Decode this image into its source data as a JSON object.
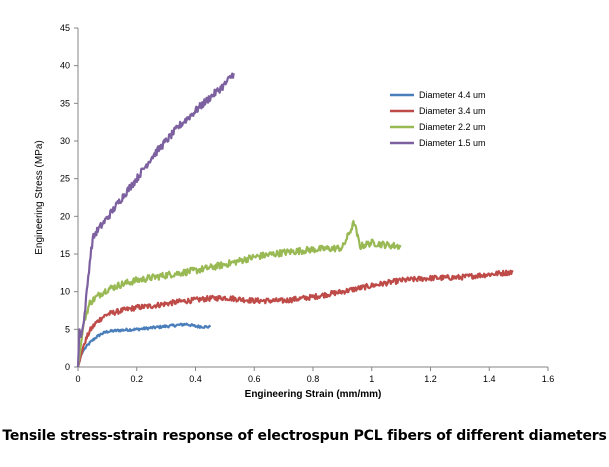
{
  "caption": "Tensile stress-strain response of electrospun PCL fibers of different diameters",
  "chart_data": {
    "type": "line",
    "title": "",
    "xlabel": "Engineering Strain (mm/mm)",
    "ylabel": "Engineering Stress (MPa)",
    "xlim": [
      0,
      1.6
    ],
    "ylim": [
      0,
      45
    ],
    "xticks": [
      0,
      0.2,
      0.4,
      0.6,
      0.8,
      1,
      1.2,
      1.4,
      1.6
    ],
    "xtick_labels": [
      "0",
      "0.2",
      "0.4",
      "0.6",
      "0.8",
      "1",
      "1.2",
      "1.4",
      "1.6"
    ],
    "yticks": [
      0,
      5,
      10,
      15,
      20,
      25,
      30,
      35,
      40,
      45
    ],
    "ytick_labels": [
      "0",
      "5",
      "10",
      "15",
      "20",
      "25",
      "30",
      "35",
      "40",
      "45"
    ],
    "grid": false,
    "legend_position": "top-right",
    "series": [
      {
        "name": "Diameter 4.4 um",
        "color": "#4a7ebb",
        "x": [
          0,
          0.01,
          0.02,
          0.04,
          0.06,
          0.08,
          0.1,
          0.15,
          0.2,
          0.25,
          0.3,
          0.35,
          0.37,
          0.4,
          0.45
        ],
        "y": [
          0,
          1.5,
          2.3,
          3.2,
          3.9,
          4.4,
          4.7,
          4.9,
          5.0,
          5.2,
          5.4,
          5.6,
          5.7,
          5.4,
          5.3
        ]
      },
      {
        "name": "Diameter 3.4 um",
        "color": "#be4b48",
        "x": [
          0,
          0.01,
          0.02,
          0.04,
          0.06,
          0.08,
          0.1,
          0.15,
          0.2,
          0.25,
          0.3,
          0.35,
          0.4,
          0.45,
          0.5,
          0.55,
          0.6,
          0.7,
          0.8,
          0.9,
          1.0,
          1.1,
          1.2,
          1.3,
          1.4,
          1.48
        ],
        "y": [
          0,
          1.5,
          3.0,
          4.8,
          5.8,
          6.5,
          7.0,
          7.5,
          7.9,
          8.1,
          8.4,
          8.7,
          8.9,
          9.1,
          9.2,
          9.0,
          8.8,
          8.8,
          9.3,
          10.0,
          10.8,
          11.5,
          11.8,
          11.9,
          12.3,
          12.6
        ]
      },
      {
        "name": "Diameter 2.2 um",
        "color": "#98b954",
        "x": [
          0,
          0.01,
          0.02,
          0.04,
          0.06,
          0.08,
          0.1,
          0.15,
          0.2,
          0.3,
          0.4,
          0.5,
          0.6,
          0.7,
          0.8,
          0.9,
          0.94,
          0.96,
          1.0,
          1.05,
          1.1
        ],
        "y": [
          0,
          3.0,
          6.0,
          8.5,
          9.2,
          9.8,
          10.3,
          11.0,
          11.5,
          12.2,
          12.8,
          13.6,
          14.6,
          15.2,
          15.6,
          15.8,
          19.2,
          16.0,
          16.5,
          16.2,
          16.0
        ]
      },
      {
        "name": "Diameter 1.5 um",
        "color": "#7d60a0",
        "x": [
          0,
          0.005,
          0.01,
          0.02,
          0.03,
          0.04,
          0.05,
          0.06,
          0.08,
          0.1,
          0.15,
          0.2,
          0.25,
          0.3,
          0.35,
          0.4,
          0.45,
          0.5,
          0.53
        ],
        "y": [
          0,
          5.0,
          4.0,
          6.0,
          10.0,
          14.0,
          17.0,
          17.8,
          18.8,
          19.8,
          22.5,
          25.0,
          27.8,
          30.0,
          32.2,
          34.0,
          35.8,
          37.5,
          39.0
        ]
      }
    ]
  }
}
